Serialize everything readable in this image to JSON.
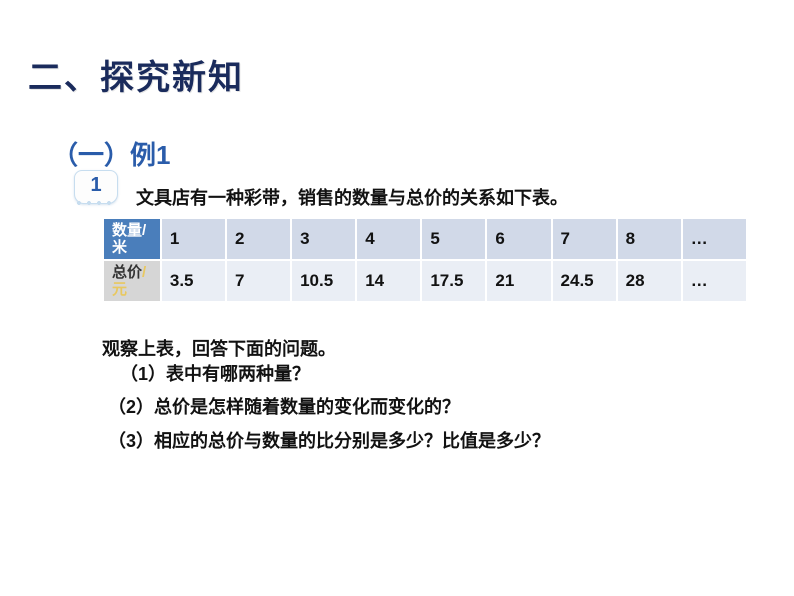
{
  "heading": "二、探究新知",
  "subheading": "（一）例1",
  "badge_number": "1",
  "problem": "文具店有一种彩带，销售的数量与总价的关系如下表。",
  "table": {
    "row1_header_line1": "数量",
    "row1_header_line2": "米",
    "row1_values": [
      "1",
      "2",
      "3",
      "4",
      "5",
      "6",
      "7",
      "8",
      "…"
    ],
    "row2_header_line1": "总价",
    "row2_header_line2": "元",
    "row2_values": [
      "3.5",
      "7",
      "10.5",
      "14",
      "17.5",
      "21",
      "24.5",
      "28",
      "…"
    ],
    "header_bg": "#4a7ebb",
    "header_fg": "#ffffff",
    "row1_data_bg": "#d1d9e8",
    "row2_header_bg": "#d6d6d6",
    "row2_data_bg": "#eaeef5",
    "border_color": "#ffffff"
  },
  "observe": "观察上表，回答下面的问题。",
  "q1": "（1）表中有哪两种量？",
  "q2": "（2）总价是怎样随着数量的变化而变化的？",
  "q3": "（3）相应的总价与数量的比分别是多少？比值是多少？",
  "colors": {
    "heading": "#1a2b5c",
    "subheading": "#2a5caa",
    "body_text": "#121212",
    "unit_accent": "#e8c860"
  }
}
